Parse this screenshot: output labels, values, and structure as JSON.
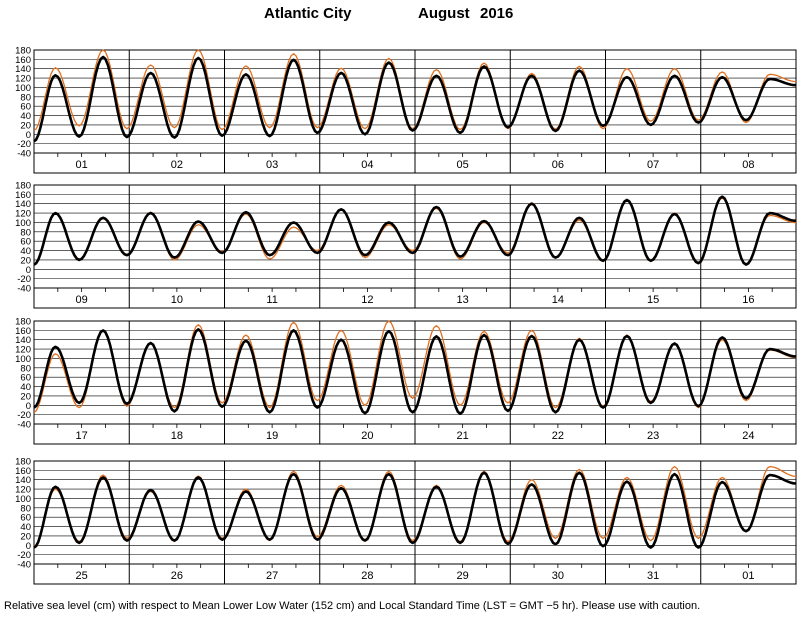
{
  "title": {
    "place": "Atlantic City",
    "month": "August",
    "year": "2016"
  },
  "footer": "Relative sea level (cm) with respect to Mean Lower Low Water (152 cm) and Local Standard Time (LST = GMT −5 hr). Please use with caution.",
  "colors": {
    "observed": "#000000",
    "predicted": "#e07020",
    "grid": "#000000"
  },
  "chart_data": [
    {
      "type": "line",
      "days": [
        "01",
        "02",
        "03",
        "04",
        "05",
        "06",
        "07",
        "08"
      ],
      "ylim": [
        -40,
        180
      ],
      "yticks": [
        -40,
        -20,
        0,
        20,
        40,
        60,
        80,
        100,
        120,
        140,
        160,
        180
      ],
      "series": [
        {
          "key": "observed",
          "highs": [
            126,
            165,
            131,
            163,
            128,
            159,
            131,
            153,
            125,
            145,
            125,
            136,
            122,
            125,
            122,
            118
          ],
          "lows": [
            -5,
            -6,
            -7,
            -3,
            -4,
            3,
            0,
            8,
            3,
            15,
            7,
            18,
            20,
            25,
            30
          ]
        },
        {
          "key": "predicted",
          "highs": [
            142,
            180,
            148,
            180,
            146,
            172,
            141,
            162,
            138,
            152,
            130,
            145,
            140,
            140,
            133,
            128
          ],
          "lows": [
            18,
            12,
            14,
            10,
            14,
            14,
            12,
            12,
            10,
            12,
            11,
            12,
            28,
            30,
            25
          ]
        }
      ]
    },
    {
      "type": "line",
      "days": [
        "09",
        "10",
        "11",
        "12",
        "13",
        "14",
        "15",
        "16"
      ],
      "ylim": [
        -40,
        180
      ],
      "yticks": [
        -40,
        -20,
        0,
        20,
        40,
        60,
        80,
        100,
        120,
        140,
        160,
        180
      ],
      "series": [
        {
          "key": "observed",
          "highs": [
            120,
            110,
            120,
            102,
            122,
            100,
            128,
            100,
            133,
            103,
            140,
            110,
            148,
            118,
            155,
            120
          ],
          "lows": [
            20,
            30,
            25,
            35,
            30,
            35,
            30,
            35,
            27,
            30,
            25,
            18,
            18,
            13,
            10
          ]
        },
        {
          "key": "predicted",
          "highs": [
            120,
            108,
            122,
            95,
            118,
            90,
            127,
            95,
            130,
            100,
            142,
            105,
            148,
            120,
            152,
            115
          ],
          "lows": [
            22,
            32,
            20,
            38,
            22,
            40,
            25,
            40,
            22,
            35,
            25,
            20,
            20,
            15,
            12
          ]
        }
      ]
    },
    {
      "type": "line",
      "days": [
        "17",
        "18",
        "19",
        "20",
        "21",
        "22",
        "23",
        "24"
      ],
      "ylim": [
        -40,
        180
      ],
      "yticks": [
        -40,
        -20,
        0,
        20,
        40,
        60,
        80,
        100,
        120,
        140,
        160,
        180
      ],
      "series": [
        {
          "key": "observed",
          "highs": [
            125,
            160,
            133,
            162,
            138,
            160,
            140,
            158,
            147,
            150,
            148,
            140,
            148,
            132,
            145,
            120
          ],
          "lows": [
            5,
            3,
            -13,
            -3,
            -15,
            -5,
            -17,
            -15,
            -18,
            -12,
            -15,
            -5,
            5,
            -2,
            15
          ]
        },
        {
          "key": "predicted",
          "highs": [
            110,
            160,
            132,
            172,
            150,
            177,
            160,
            180,
            170,
            158,
            160,
            143,
            150,
            133,
            140,
            118
          ],
          "lows": [
            -5,
            -2,
            -5,
            5,
            -5,
            10,
            0,
            15,
            0,
            5,
            -5,
            -2,
            8,
            -5,
            10
          ]
        }
      ]
    },
    {
      "type": "line",
      "days": [
        "25",
        "26",
        "27",
        "28",
        "29",
        "30",
        "31",
        "01"
      ],
      "ylim": [
        -40,
        180
      ],
      "yticks": [
        -40,
        -20,
        0,
        20,
        40,
        60,
        80,
        100,
        120,
        140,
        160,
        180
      ],
      "series": [
        {
          "key": "observed",
          "highs": [
            125,
            145,
            118,
            145,
            115,
            152,
            122,
            152,
            125,
            155,
            130,
            155,
            136,
            152,
            135,
            150
          ],
          "lows": [
            5,
            10,
            10,
            12,
            12,
            12,
            10,
            5,
            5,
            3,
            2,
            -2,
            -5,
            -5,
            30
          ]
        },
        {
          "key": "predicted",
          "highs": [
            120,
            150,
            115,
            148,
            120,
            158,
            128,
            158,
            128,
            158,
            140,
            162,
            145,
            168,
            145,
            168
          ],
          "lows": [
            8,
            15,
            8,
            15,
            10,
            18,
            12,
            10,
            8,
            8,
            15,
            15,
            10,
            15,
            30
          ]
        }
      ]
    }
  ]
}
